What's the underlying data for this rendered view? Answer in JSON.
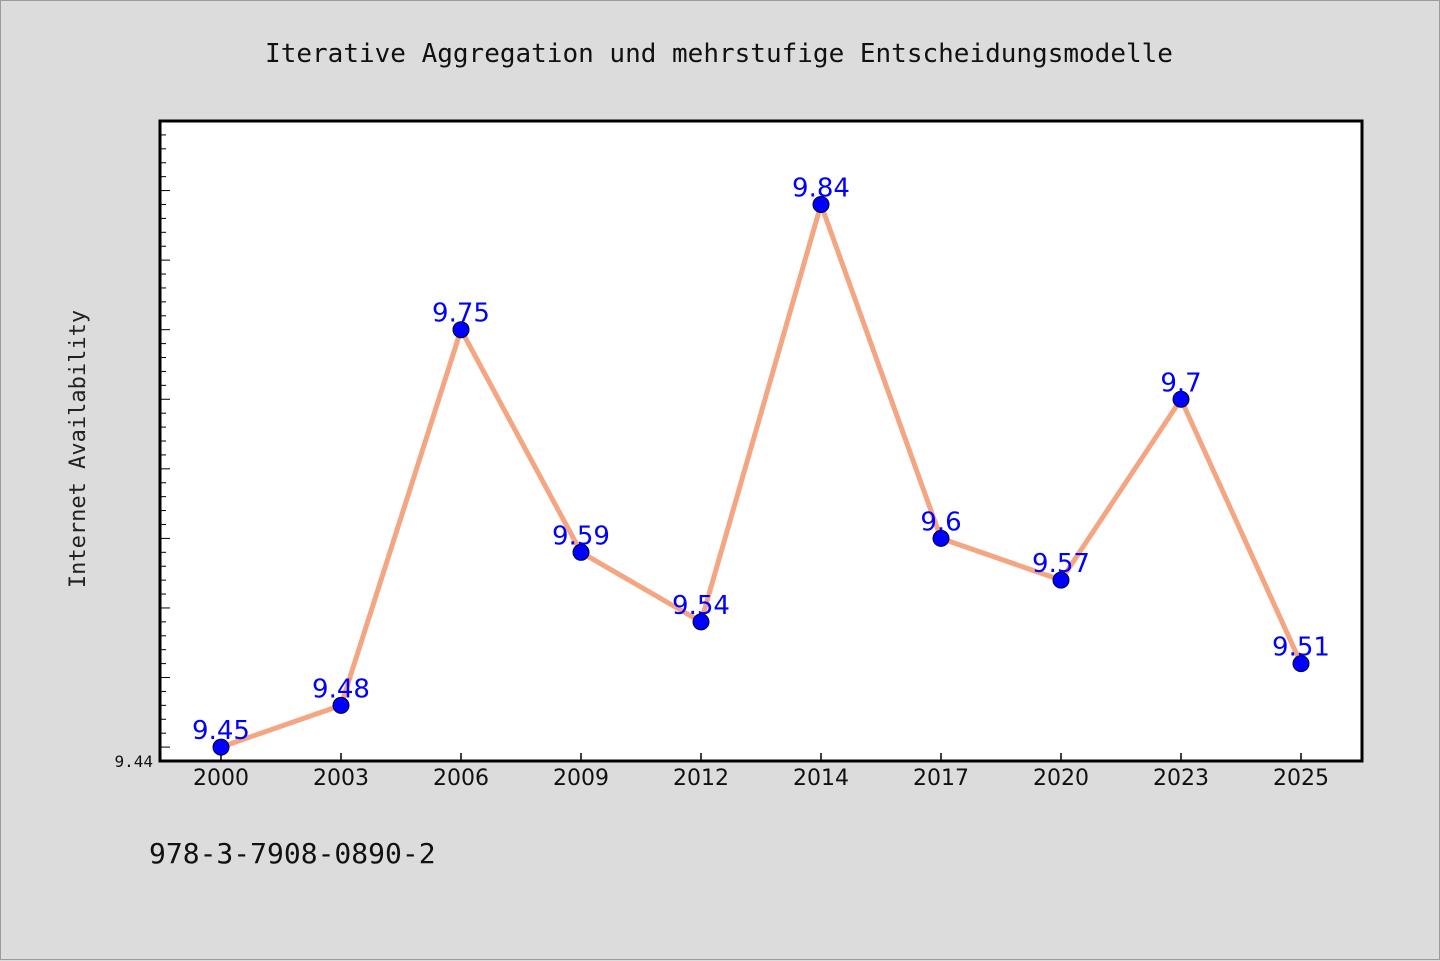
{
  "chart_data": {
    "type": "line",
    "title": "Iterative Aggregation und mehrstufige Entscheidungsmodelle",
    "xlabel": "",
    "ylabel": "Internet Availability",
    "categories": [
      "2000",
      "2003",
      "2006",
      "2009",
      "2012",
      "2014",
      "2017",
      "2020",
      "2023",
      "2025"
    ],
    "series": [
      {
        "values": [
          9.45,
          9.48,
          9.75,
          9.59,
          9.54,
          9.84,
          9.6,
          9.57,
          9.7,
          9.51
        ],
        "labels": [
          "9.45",
          "9.48",
          "9.75",
          "9.59",
          "9.54",
          "9.84",
          "9.6",
          "9.57",
          "9.7",
          "9.51"
        ],
        "line_color": "#f4a582",
        "marker_color": "#0000ff",
        "label_color": "#0000ff"
      }
    ],
    "ylim": [
      9.44,
      9.9
    ],
    "y_tick_labels": [
      "9.44"
    ],
    "grid": false,
    "legend": "none"
  },
  "footer": {
    "isbn": "978-3-7908-0890-2"
  }
}
